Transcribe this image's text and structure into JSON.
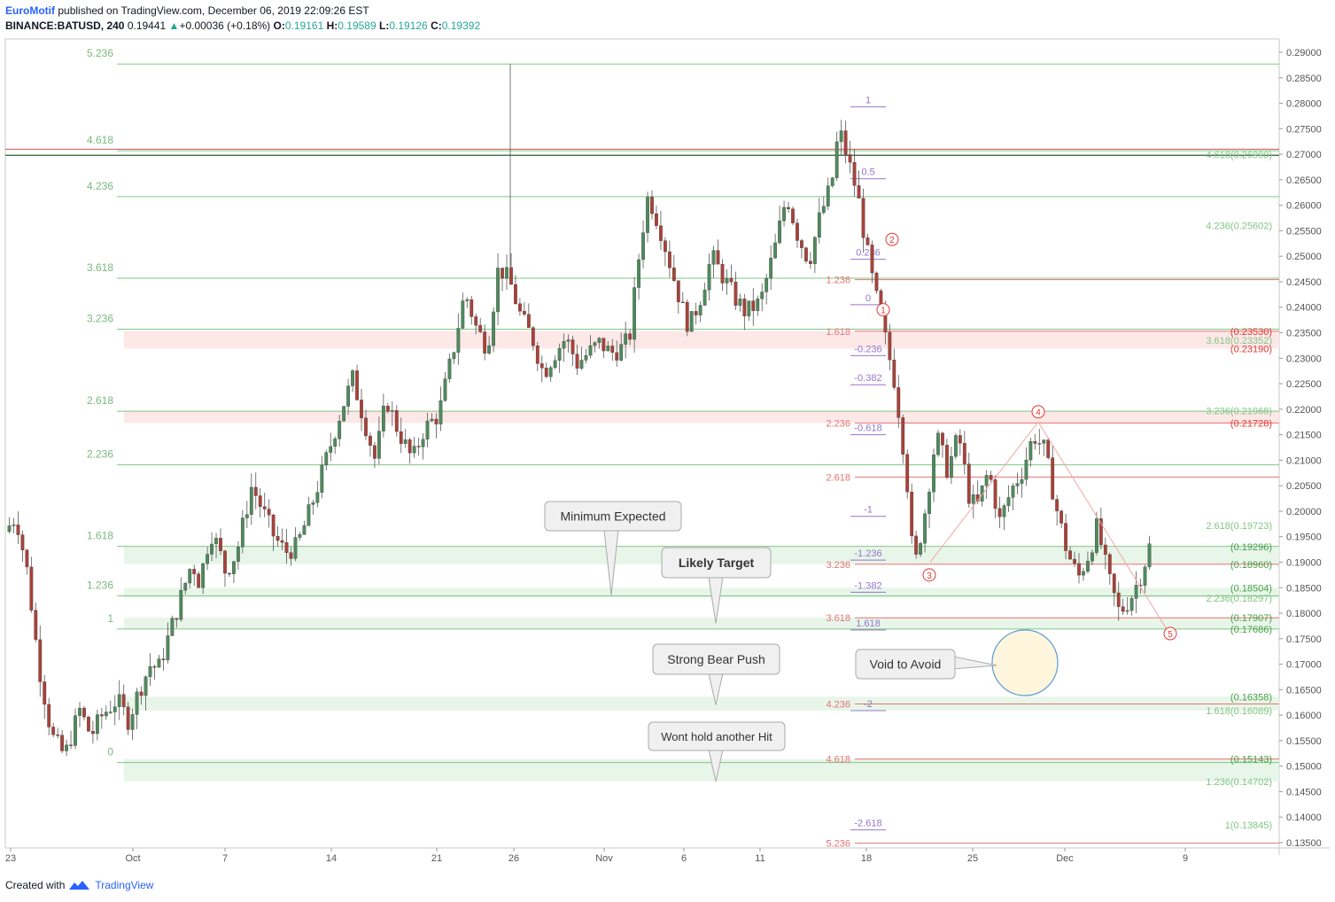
{
  "header": {
    "author": "EuroMotif",
    "published_text": "published on TradingView.com, December 06, 2019 22:09:26 EST",
    "symbol": "BINANCE:BATUSD, 240",
    "last": "0.19441",
    "change_arrow": "▲",
    "change": "+0.00036 (+0.18%)",
    "o_label": "O:",
    "o": "0.19161",
    "h_label": "H:",
    "h": "0.19589",
    "l_label": "L:",
    "l": "0.19126",
    "c_label": "C:",
    "c": "0.19392"
  },
  "footer": {
    "created": "Created with",
    "brand": "TradingView",
    "logo_icon": "tradingview-logo-icon"
  },
  "chart_data": {
    "type": "candlestick",
    "price_axis": {
      "min": 0.135,
      "max": 0.29,
      "ticks": [
        "0.29000",
        "0.28500",
        "0.28000",
        "0.27500",
        "0.27000",
        "0.26500",
        "0.26000",
        "0.25500",
        "0.25000",
        "0.24500",
        "0.24000",
        "0.23500",
        "0.23000",
        "0.22500",
        "0.22000",
        "0.21500",
        "0.21000",
        "0.20500",
        "0.20000",
        "0.19500",
        "0.19000",
        "0.18500",
        "0.18000",
        "0.17500",
        "0.17000",
        "0.16500",
        "0.16000",
        "0.15500",
        "0.15000",
        "0.14500",
        "0.14000",
        "0.13500"
      ]
    },
    "time_axis": {
      "labels": [
        "23",
        "Oct",
        "7",
        "14",
        "21",
        "26",
        "Nov",
        "6",
        "11",
        "18",
        "25",
        "Dec",
        "9"
      ]
    },
    "fib_extension_left": {
      "color": "#81c784",
      "levels": [
        {
          "label": "5.236",
          "price": 0.2877
        },
        {
          "label": "4.618",
          "price": 0.2707
        },
        {
          "label": "4.236",
          "price": 0.2617
        },
        {
          "label": "3.618",
          "price": 0.2457
        },
        {
          "label": "3.236",
          "price": 0.2357
        },
        {
          "label": "2.618",
          "price": 0.2196
        },
        {
          "label": "2.236",
          "price": 0.2091
        },
        {
          "label": "1.618",
          "price": 0.1931
        },
        {
          "label": "1.236",
          "price": 0.1834
        },
        {
          "label": "1",
          "price": 0.1769
        },
        {
          "label": "0",
          "price": 0.1507
        }
      ]
    },
    "fib_extension_mid_red": {
      "color": "#e57373",
      "levels": [
        {
          "label": "1.236",
          "price": 0.2454
        },
        {
          "label": "1.618",
          "price": 0.2353
        },
        {
          "label": "2.236",
          "price": 0.2173
        },
        {
          "label": "2.618",
          "price": 0.2067
        },
        {
          "label": "3.236",
          "price": 0.1896
        },
        {
          "label": "3.618",
          "price": 0.1791
        },
        {
          "label": "4.236",
          "price": 0.1622
        },
        {
          "label": "4.618",
          "price": 0.1514
        },
        {
          "label": "5.236",
          "price": 0.1349
        }
      ]
    },
    "fib_retracement_purple": {
      "color": "#9575cd",
      "levels": [
        {
          "label": "1",
          "price": 0.2793
        },
        {
          "label": "0.5",
          "price": 0.2652
        },
        {
          "label": "0.236",
          "price": 0.2494
        },
        {
          "label": "0",
          "price": 0.2405
        },
        {
          "label": "-0.236",
          "price": 0.2305
        },
        {
          "label": "-0.382",
          "price": 0.2248
        },
        {
          "label": "-0.618",
          "price": 0.215
        },
        {
          "label": "-1",
          "price": 0.199
        },
        {
          "label": "-1.236",
          "price": 0.1904
        },
        {
          "label": "-1.382",
          "price": 0.1841
        },
        {
          "label": "1.618",
          "price": 0.1767
        },
        {
          "label": "-2",
          "price": 0.1609
        },
        {
          "label": "-2.618",
          "price": 0.1375
        }
      ]
    },
    "right_levels": [
      {
        "label": "4.618(0.26990)",
        "price": 0.2699,
        "color": "#81c784"
      },
      {
        "label": "4.236(0.25602)",
        "price": 0.256,
        "color": "#81c784"
      },
      {
        "label": "(0.23530)",
        "price": 0.2353,
        "color": "#e53935"
      },
      {
        "label": "3.618(0.23352)",
        "price": 0.2335,
        "color": "#81c784"
      },
      {
        "label": "(0.23190)",
        "price": 0.2319,
        "color": "#e53935"
      },
      {
        "label": "3.236(0.21968)",
        "price": 0.2197,
        "color": "#81c784"
      },
      {
        "label": "(0.21728)",
        "price": 0.2173,
        "color": "#e53935"
      },
      {
        "label": "2.618(0.19723)",
        "price": 0.1972,
        "color": "#81c784"
      },
      {
        "label": "(0.19296)",
        "price": 0.193,
        "color": "#43a047"
      },
      {
        "label": "(0.18960)",
        "price": 0.1896,
        "color": "#43a047"
      },
      {
        "label": "(0.18504)",
        "price": 0.185,
        "color": "#43a047"
      },
      {
        "label": "2.236(0.18297)",
        "price": 0.183,
        "color": "#81c784"
      },
      {
        "label": "(0.17907)",
        "price": 0.1791,
        "color": "#43a047"
      },
      {
        "label": "(0.17686)",
        "price": 0.1769,
        "color": "#43a047"
      },
      {
        "label": "(0.16358)",
        "price": 0.1636,
        "color": "#43a047"
      },
      {
        "label": "1.618(0.16089)",
        "price": 0.1609,
        "color": "#81c784"
      },
      {
        "label": "(0.15143)",
        "price": 0.1514,
        "color": "#43a047"
      },
      {
        "label": "1.236(0.14702)",
        "price": 0.147,
        "color": "#81c784"
      },
      {
        "label": "1(0.13845)",
        "price": 0.1385,
        "color": "#81c784"
      }
    ],
    "zones": [
      {
        "top": 0.2353,
        "bottom": 0.2319,
        "color": "#fde8e8"
      },
      {
        "top": 0.2197,
        "bottom": 0.2173,
        "color": "#fde8e8"
      },
      {
        "top": 0.193,
        "bottom": 0.1896,
        "color": "#e8f5e9"
      },
      {
        "top": 0.185,
        "bottom": 0.183,
        "color": "#e8f5e9"
      },
      {
        "top": 0.1791,
        "bottom": 0.1769,
        "color": "#e8f5e9"
      },
      {
        "top": 0.1636,
        "bottom": 0.1609,
        "color": "#e8f5e9"
      },
      {
        "top": 0.1514,
        "bottom": 0.147,
        "color": "#e8f5e9"
      }
    ],
    "wave_labels": [
      {
        "label": "1",
        "price": 0.2395
      },
      {
        "label": "2",
        "price": 0.2533
      },
      {
        "label": "3",
        "price": 0.1875
      },
      {
        "label": "4",
        "price": 0.2195
      },
      {
        "label": "5",
        "price": 0.176
      }
    ],
    "callouts": [
      {
        "text": "Minimum Expected",
        "bold": false,
        "pointer_price": 0.1835
      },
      {
        "text": "Likely Target",
        "bold": true,
        "pointer_price": 0.178
      },
      {
        "text": "Strong Bear Push",
        "bold": false,
        "pointer_price": 0.162
      },
      {
        "text": "Wont hold another Hit",
        "bold": false,
        "pointer_price": 0.147
      },
      {
        "text": "Void to Avoid",
        "bold": false,
        "pointer_price": 0.17
      }
    ],
    "price_path": [
      [
        0.196,
        0
      ],
      [
        0.199,
        0.6
      ],
      [
        0.188,
        1.2
      ],
      [
        0.17,
        1.8
      ],
      [
        0.156,
        2.5
      ],
      [
        0.152,
        3.2
      ],
      [
        0.161,
        4.0
      ],
      [
        0.156,
        4.6
      ],
      [
        0.16,
        5.2
      ],
      [
        0.163,
        6.0
      ],
      [
        0.159,
        6.6
      ],
      [
        0.165,
        7.2
      ],
      [
        0.17,
        7.8
      ],
      [
        0.169,
        8.2
      ],
      [
        0.176,
        8.8
      ],
      [
        0.183,
        9.4
      ],
      [
        0.19,
        10.0
      ],
      [
        0.186,
        10.4
      ],
      [
        0.196,
        11.0
      ],
      [
        0.193,
        11.4
      ],
      [
        0.188,
        11.8
      ],
      [
        0.192,
        12.4
      ],
      [
        0.205,
        13.2
      ],
      [
        0.2,
        13.8
      ],
      [
        0.195,
        14.4
      ],
      [
        0.192,
        15.0
      ],
      [
        0.193,
        15.6
      ],
      [
        0.199,
        16.2
      ],
      [
        0.208,
        17.0
      ],
      [
        0.22,
        18.0
      ],
      [
        0.226,
        18.6
      ],
      [
        0.218,
        19.2
      ],
      [
        0.21,
        19.8
      ],
      [
        0.222,
        20.4
      ],
      [
        0.216,
        21.0
      ],
      [
        0.21,
        21.8
      ],
      [
        0.216,
        22.4
      ],
      [
        0.219,
        23.2
      ],
      [
        0.232,
        24.0
      ],
      [
        0.243,
        24.6
      ],
      [
        0.236,
        25.2
      ],
      [
        0.232,
        25.8
      ],
      [
        0.248,
        26.4
      ],
      [
        0.245,
        27.0
      ],
      [
        0.238,
        27.6
      ],
      [
        0.234,
        28.2
      ],
      [
        0.227,
        28.8
      ],
      [
        0.231,
        29.4
      ],
      [
        0.234,
        30.0
      ],
      [
        0.229,
        30.6
      ],
      [
        0.231,
        31.2
      ],
      [
        0.233,
        31.8
      ],
      [
        0.231,
        32.4
      ],
      [
        0.232,
        33.0
      ],
      [
        0.234,
        33.4
      ],
      [
        0.253,
        34.0
      ],
      [
        0.262,
        34.4
      ],
      [
        0.256,
        35.0
      ],
      [
        0.248,
        35.6
      ],
      [
        0.24,
        36.2
      ],
      [
        0.236,
        36.6
      ],
      [
        0.242,
        37.2
      ],
      [
        0.25,
        37.8
      ],
      [
        0.246,
        38.4
      ],
      [
        0.242,
        39.0
      ],
      [
        0.239,
        39.6
      ],
      [
        0.241,
        40.4
      ],
      [
        0.252,
        41.2
      ],
      [
        0.262,
        41.8
      ],
      [
        0.254,
        42.4
      ],
      [
        0.249,
        43.0
      ],
      [
        0.258,
        43.6
      ],
      [
        0.264,
        44.2
      ],
      [
        0.275,
        44.6
      ],
      [
        0.27,
        45.0
      ],
      [
        0.262,
        45.6
      ],
      [
        0.253,
        46.0
      ],
      [
        0.245,
        46.4
      ],
      [
        0.235,
        47.0
      ],
      [
        0.225,
        47.6
      ],
      [
        0.208,
        48.2
      ],
      [
        0.188,
        48.6
      ],
      [
        0.2,
        49.2
      ],
      [
        0.215,
        49.8
      ],
      [
        0.208,
        50.4
      ],
      [
        0.215,
        51.0
      ],
      [
        0.202,
        51.6
      ],
      [
        0.201,
        52.0
      ],
      [
        0.208,
        52.6
      ],
      [
        0.198,
        53.2
      ],
      [
        0.204,
        53.8
      ],
      [
        0.208,
        54.4
      ],
      [
        0.215,
        55.0
      ],
      [
        0.212,
        55.6
      ],
      [
        0.201,
        56.2
      ],
      [
        0.192,
        56.8
      ],
      [
        0.187,
        57.4
      ],
      [
        0.192,
        58.0
      ],
      [
        0.197,
        58.4
      ],
      [
        0.187,
        59.0
      ],
      [
        0.18,
        59.6
      ],
      [
        0.183,
        60.2
      ],
      [
        0.188,
        60.8
      ],
      [
        0.193,
        61.2
      ]
    ]
  }
}
